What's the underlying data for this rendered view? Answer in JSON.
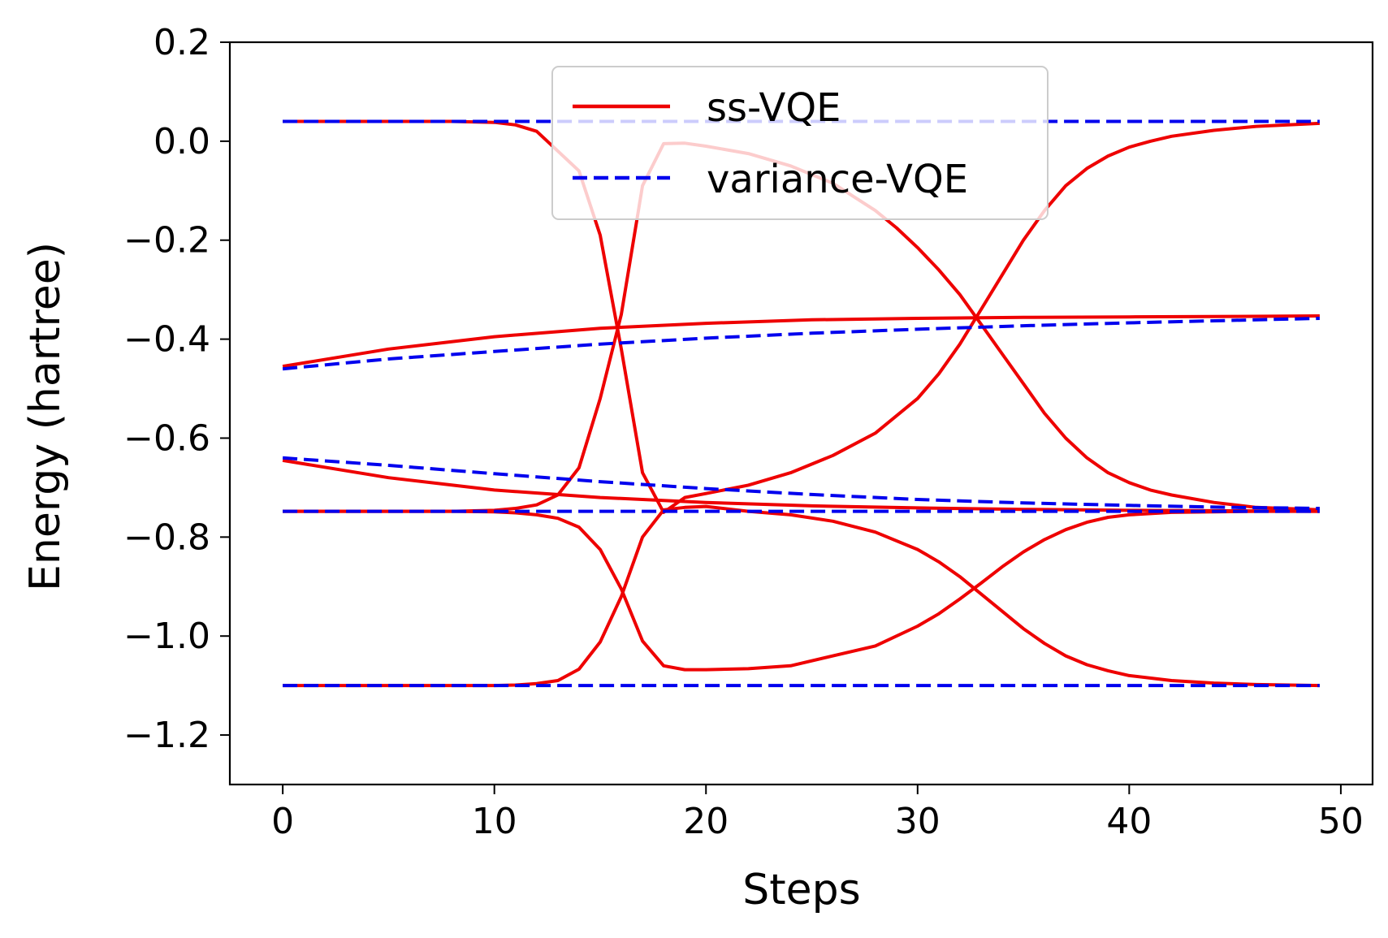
{
  "chart_data": {
    "type": "line",
    "title": "",
    "xlabel": "Steps",
    "ylabel": "Energy (hartree)",
    "xlim": [
      -2.5,
      51.5
    ],
    "ylim": [
      -1.3,
      0.2
    ],
    "xticks": [
      0,
      10,
      20,
      30,
      40,
      50
    ],
    "xtick_labels": [
      "0",
      "10",
      "20",
      "30",
      "40",
      "50"
    ],
    "yticks": [
      0.2,
      0.0,
      -0.2,
      -0.4,
      -0.6,
      -0.8,
      -1.0,
      -1.2
    ],
    "ytick_labels": [
      "0.2",
      "0.0",
      "−0.2",
      "−0.4",
      "−0.6",
      "−0.8",
      "−1.0",
      "−1.2"
    ],
    "grid": false,
    "legend": {
      "position": "top-center",
      "entries": [
        {
          "label": "ss-VQE",
          "color": "#ee0000",
          "style": "solid"
        },
        {
          "label": "variance-VQE",
          "color": "#0000ee",
          "style": "dashed"
        }
      ]
    },
    "series": [
      {
        "name": "ss-VQE",
        "color": "#ee0000",
        "style": "solid",
        "lines": [
          {
            "x": [
              0,
              2,
              4,
              6,
              8,
              10,
              11,
              12,
              13,
              14,
              15,
              16,
              17,
              18,
              19,
              20,
              22,
              24,
              26,
              28,
              30,
              31,
              32,
              33,
              34,
              35,
              36,
              37,
              38,
              39,
              40,
              41,
              42,
              44,
              46,
              49
            ],
            "y": [
              0.04,
              0.04,
              0.04,
              0.04,
              0.04,
              0.038,
              0.033,
              0.02,
              -0.02,
              -0.06,
              -0.19,
              -0.42,
              -0.67,
              -0.75,
              -0.72,
              -0.712,
              -0.695,
              -0.67,
              -0.635,
              -0.59,
              -0.52,
              -0.47,
              -0.41,
              -0.34,
              -0.27,
              -0.2,
              -0.14,
              -0.09,
              -0.055,
              -0.03,
              -0.012,
              0.0,
              0.01,
              0.022,
              0.03,
              0.036
            ]
          },
          {
            "x": [
              0,
              4,
              8,
              10,
              11,
              12,
              13,
              14,
              15,
              16,
              17,
              18,
              19,
              20,
              22,
              24,
              26,
              28,
              29,
              30,
              31,
              32,
              33,
              34,
              35,
              36,
              37,
              38,
              39,
              40,
              41,
              42,
              44,
              46,
              49
            ],
            "y": [
              -0.748,
              -0.748,
              -0.748,
              -0.746,
              -0.742,
              -0.735,
              -0.715,
              -0.66,
              -0.52,
              -0.35,
              -0.09,
              -0.005,
              -0.004,
              -0.01,
              -0.025,
              -0.05,
              -0.085,
              -0.14,
              -0.175,
              -0.215,
              -0.26,
              -0.31,
              -0.37,
              -0.43,
              -0.49,
              -0.55,
              -0.6,
              -0.64,
              -0.67,
              -0.69,
              -0.705,
              -0.715,
              -0.73,
              -0.74,
              -0.745
            ]
          },
          {
            "x": [
              0,
              5,
              10,
              15,
              20,
              25,
              30,
              35,
              40,
              45,
              49
            ],
            "y": [
              -0.455,
              -0.42,
              -0.395,
              -0.378,
              -0.368,
              -0.361,
              -0.358,
              -0.356,
              -0.355,
              -0.354,
              -0.353
            ]
          },
          {
            "x": [
              0,
              5,
              10,
              15,
              20,
              25,
              30,
              35,
              40,
              45,
              49
            ],
            "y": [
              -0.645,
              -0.68,
              -0.705,
              -0.72,
              -0.73,
              -0.737,
              -0.741,
              -0.744,
              -0.746,
              -0.747,
              -0.748
            ]
          },
          {
            "x": [
              0,
              4,
              8,
              10,
              11,
              12,
              13,
              14,
              15,
              16,
              17,
              18,
              19,
              20,
              22,
              24,
              26,
              28,
              30,
              31,
              32,
              33,
              34,
              35,
              36,
              37,
              38,
              39,
              40,
              42,
              44,
              46,
              49
            ],
            "y": [
              -0.748,
              -0.748,
              -0.748,
              -0.749,
              -0.751,
              -0.755,
              -0.762,
              -0.78,
              -0.825,
              -0.905,
              -1.01,
              -1.06,
              -1.068,
              -1.068,
              -1.066,
              -1.06,
              -1.04,
              -1.02,
              -0.98,
              -0.955,
              -0.925,
              -0.893,
              -0.86,
              -0.83,
              -0.805,
              -0.785,
              -0.77,
              -0.76,
              -0.755,
              -0.75,
              -0.749,
              -0.748,
              -0.748
            ]
          },
          {
            "x": [
              0,
              4,
              8,
              10,
              11,
              12,
              13,
              14,
              15,
              16,
              17,
              18,
              19,
              20,
              22,
              24,
              26,
              28,
              30,
              31,
              32,
              33,
              34,
              35,
              36,
              37,
              38,
              39,
              40,
              42,
              44,
              46,
              49
            ],
            "y": [
              -1.1,
              -1.1,
              -1.1,
              -1.1,
              -1.099,
              -1.096,
              -1.09,
              -1.067,
              -1.012,
              -0.92,
              -0.8,
              -0.745,
              -0.74,
              -0.738,
              -0.748,
              -0.755,
              -0.768,
              -0.79,
              -0.825,
              -0.85,
              -0.88,
              -0.915,
              -0.95,
              -0.985,
              -1.015,
              -1.04,
              -1.058,
              -1.07,
              -1.08,
              -1.09,
              -1.095,
              -1.098,
              -1.1
            ]
          }
        ]
      },
      {
        "name": "variance-VQE",
        "color": "#0000ee",
        "style": "dashed",
        "lines": [
          {
            "x": [
              0,
              49
            ],
            "y": [
              0.04,
              0.04
            ]
          },
          {
            "x": [
              0,
              5,
              10,
              15,
              20,
              25,
              30,
              35,
              40,
              45,
              49
            ],
            "y": [
              -0.46,
              -0.44,
              -0.425,
              -0.41,
              -0.398,
              -0.388,
              -0.38,
              -0.373,
              -0.367,
              -0.362,
              -0.358
            ]
          },
          {
            "x": [
              0,
              5,
              10,
              15,
              20,
              25,
              30,
              35,
              40,
              45,
              49
            ],
            "y": [
              -0.64,
              -0.655,
              -0.672,
              -0.688,
              -0.702,
              -0.714,
              -0.724,
              -0.731,
              -0.736,
              -0.74,
              -0.742
            ]
          },
          {
            "x": [
              0,
              49
            ],
            "y": [
              -0.748,
              -0.748
            ]
          },
          {
            "x": [
              0,
              49
            ],
            "y": [
              -1.1,
              -1.1
            ]
          }
        ]
      }
    ]
  }
}
